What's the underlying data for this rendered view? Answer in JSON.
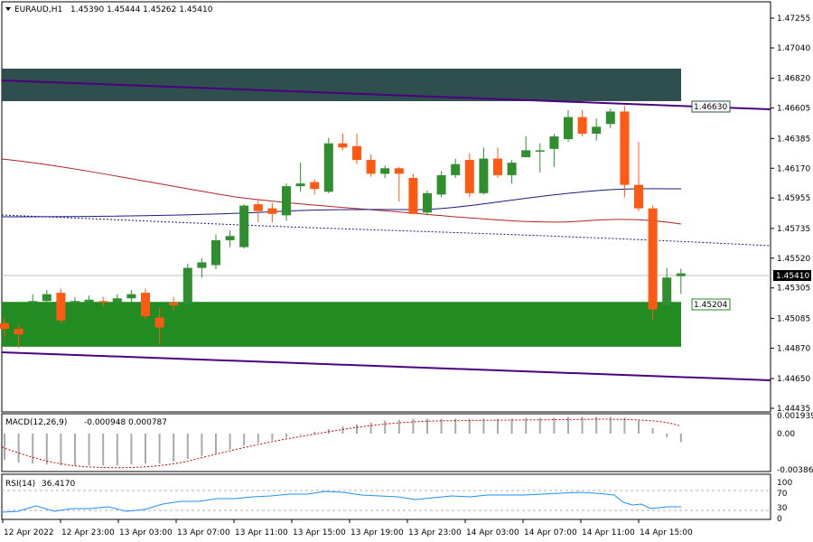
{
  "header": {
    "symbol": "EURAUD,H1",
    "ohlc": "1.45390 1.45444 1.45262 1.45410",
    "menu_icon": "triangle-down-icon"
  },
  "colors": {
    "bull": "#2f8f2f",
    "bear": "#ff5a14",
    "supply_zone": "#2f4f4f",
    "demand_zone": "#228b22",
    "channel": "#4b0082",
    "ma_fast": "#1a1a80",
    "ma_slow": "#b22222"
  },
  "chart_data": [
    {
      "type": "candlestick",
      "title": "EURAUD,H1",
      "ylim": [
        1.44435,
        1.4736
      ],
      "y_ticks": [
        "1.47255",
        "1.47040",
        "1.46820",
        "1.46605",
        "1.46385",
        "1.46170",
        "1.45955",
        "1.45735",
        "1.45520",
        "1.45305",
        "1.45085",
        "1.44870",
        "1.44650",
        "1.44435"
      ],
      "x_tick_labels": [
        "12 Apr 2022",
        "12 Apr 23:00",
        "13 Apr 03:00",
        "13 Apr 07:00",
        "13 Apr 11:00",
        "13 Apr 15:00",
        "13 Apr 19:00",
        "13 Apr 23:00",
        "14 Apr 03:00",
        "14 Apr 07:00",
        "14 Apr 11:00",
        "14 Apr 15:00"
      ],
      "current_price_label": "1.45410",
      "supply_zone": {
        "from": 1.46655,
        "to": 1.4689,
        "label": "1.46630"
      },
      "demand_zone": {
        "from": 1.4488,
        "to": 1.45204,
        "label": "1.45204"
      },
      "candles": [
        [
          1.4505,
          1.4509,
          1.4495,
          1.4501
        ],
        [
          1.4501,
          1.4504,
          1.4487,
          1.4497
        ],
        [
          1.452,
          1.4526,
          1.4516,
          1.4521
        ],
        [
          1.4521,
          1.4529,
          1.4519,
          1.4526
        ],
        [
          1.4527,
          1.453,
          1.4505,
          1.4507
        ],
        [
          1.4519,
          1.4524,
          1.4516,
          1.4521
        ],
        [
          1.452,
          1.4525,
          1.4516,
          1.4522
        ],
        [
          1.4521,
          1.4524,
          1.4517,
          1.452
        ],
        [
          1.452,
          1.4526,
          1.4517,
          1.4523
        ],
        [
          1.4523,
          1.4529,
          1.452,
          1.4526
        ],
        [
          1.4527,
          1.453,
          1.4508,
          1.451
        ],
        [
          1.4509,
          1.4516,
          1.449,
          1.4502
        ],
        [
          1.452,
          1.4524,
          1.4514,
          1.4518
        ],
        [
          1.4519,
          1.4548,
          1.4518,
          1.4545
        ],
        [
          1.4545,
          1.4552,
          1.4538,
          1.4549
        ],
        [
          1.4547,
          1.4569,
          1.4544,
          1.4565
        ],
        [
          1.4565,
          1.4572,
          1.456,
          1.4568
        ],
        [
          1.456,
          1.4591,
          1.4559,
          1.459
        ],
        [
          1.4591,
          1.4595,
          1.4578,
          1.4586
        ],
        [
          1.4588,
          1.4592,
          1.4578,
          1.4584
        ],
        [
          1.4583,
          1.4606,
          1.4579,
          1.4604
        ],
        [
          1.4604,
          1.4621,
          1.46,
          1.4606
        ],
        [
          1.4607,
          1.4609,
          1.4598,
          1.4602
        ],
        [
          1.46,
          1.4639,
          1.4599,
          1.4635
        ],
        [
          1.4635,
          1.4642,
          1.463,
          1.4632
        ],
        [
          1.4633,
          1.4642,
          1.462,
          1.4623
        ],
        [
          1.4623,
          1.4627,
          1.4611,
          1.4613
        ],
        [
          1.4613,
          1.4619,
          1.461,
          1.4617
        ],
        [
          1.4617,
          1.4618,
          1.4593,
          1.4613
        ],
        [
          1.461,
          1.4613,
          1.4584,
          1.4584
        ],
        [
          1.4585,
          1.4601,
          1.4583,
          1.4599
        ],
        [
          1.4598,
          1.4615,
          1.4596,
          1.4612
        ],
        [
          1.4612,
          1.4624,
          1.461,
          1.462
        ],
        [
          1.4623,
          1.4628,
          1.4596,
          1.4599
        ],
        [
          1.4599,
          1.4632,
          1.4598,
          1.4624
        ],
        [
          1.4624,
          1.4632,
          1.461,
          1.4612
        ],
        [
          1.4612,
          1.4623,
          1.4606,
          1.4621
        ],
        [
          1.4625,
          1.464,
          1.4625,
          1.463
        ],
        [
          1.4629,
          1.4635,
          1.4614,
          1.463
        ],
        [
          1.4631,
          1.4642,
          1.4618,
          1.464
        ],
        [
          1.4638,
          1.4659,
          1.4636,
          1.4654
        ],
        [
          1.4654,
          1.4659,
          1.464,
          1.4642
        ],
        [
          1.4642,
          1.4653,
          1.4637,
          1.4647
        ],
        [
          1.4649,
          1.466,
          1.4646,
          1.4658
        ],
        [
          1.4658,
          1.4662,
          1.4596,
          1.4605
        ],
        [
          1.4605,
          1.4636,
          1.4586,
          1.4588
        ],
        [
          1.4588,
          1.459,
          1.4507,
          1.4515
        ],
        [
          1.4518,
          1.4545,
          1.4515,
          1.4538
        ],
        [
          1.4539,
          1.45444,
          1.45262,
          1.4541
        ]
      ]
    },
    {
      "type": "bar",
      "title": "MACD(12,26,9)",
      "values_label": "-0.000948 0.000787",
      "y_ticks": [
        "0.001939",
        "0.00",
        "-0.00386"
      ],
      "values": [
        -0.0028,
        -0.0031,
        -0.0032,
        -0.0033,
        -0.0034,
        -0.0034,
        -0.0034,
        -0.0034,
        -0.0034,
        -0.0033,
        -0.0032,
        -0.0032,
        -0.003,
        -0.0027,
        -0.0024,
        -0.0021,
        -0.0017,
        -0.0013,
        -0.001,
        -0.0007,
        -0.0004,
        -0.0001,
        0.0002,
        0.0005,
        0.0008,
        0.001,
        0.0012,
        0.0014,
        0.0015,
        0.0016,
        0.0016,
        0.0016,
        0.0016,
        0.0016,
        0.0016,
        0.0016,
        0.0016,
        0.0017,
        0.0017,
        0.0017,
        0.0018,
        0.0018,
        0.0018,
        0.0018,
        0.0017,
        0.0014,
        0.0006,
        -0.0004,
        -0.0009
      ]
    },
    {
      "type": "line",
      "title": "RSI(14)",
      "values_label": "36.4170",
      "y_ticks": [
        "100",
        "70",
        "30",
        "0"
      ]
    }
  ]
}
